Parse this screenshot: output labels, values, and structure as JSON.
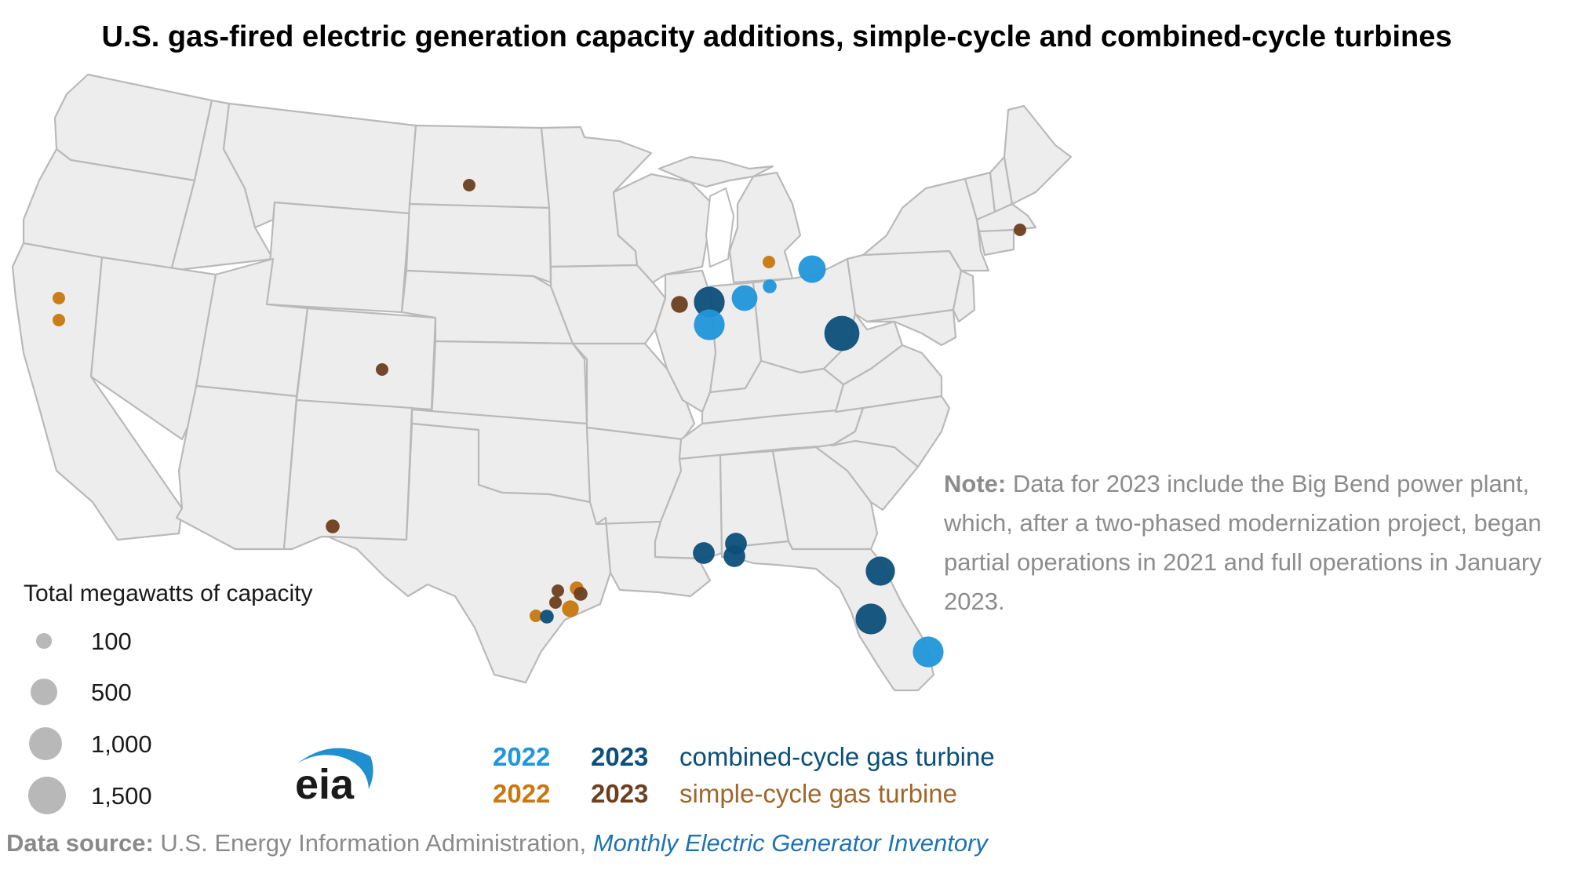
{
  "title": "U.S. gas-fired electric generation capacity additions, simple-cycle and combined-cycle turbines",
  "legend": {
    "title": "Total megawatts of capacity",
    "sizes": [
      "100",
      "500",
      "1,000",
      "1,500"
    ]
  },
  "key": {
    "combined_2022": "2022",
    "combined_2023": "2023",
    "combined_label": "combined-cycle gas turbine",
    "simple_2022": "2022",
    "simple_2023": "2023",
    "simple_label": "simple-cycle gas turbine"
  },
  "note": {
    "label": "Note:",
    "text": "Data for 2023 include the Big Bend power plant, which, after a two-phased modernization project, began partial operations in 2021 and full operations in January 2023."
  },
  "source": {
    "label": "Data source:",
    "org": "U.S. Energy Information Administration,",
    "dataset": "Monthly Electric Generator Inventory"
  },
  "logo": {
    "text": "eia"
  },
  "colors": {
    "combined_2022": "#2196d9",
    "combined_2023": "#0c4f7a",
    "simple_2022": "#c8780e",
    "simple_2023": "#6b3f1f",
    "legend_circle": "#b8b8b8",
    "state_fill": "#ededed",
    "state_border": "#b9b9b9"
  },
  "map_data": {
    "points": [
      {
        "location": "North Dakota",
        "category": "simple-cycle 2023",
        "mw": 120
      },
      {
        "location": "Massachusetts",
        "category": "simple-cycle 2023",
        "mw": 120
      },
      {
        "location": "California (north)",
        "category": "simple-cycle 2022",
        "mw": 80
      },
      {
        "location": "California (central)",
        "category": "simple-cycle 2022",
        "mw": 80
      },
      {
        "location": "Colorado",
        "category": "simple-cycle 2023",
        "mw": 150
      },
      {
        "location": "New Mexico",
        "category": "simple-cycle 2023",
        "mw": 200
      },
      {
        "location": "Michigan (north)",
        "category": "simple-cycle 2022",
        "mw": 60
      },
      {
        "location": "Michigan (east)",
        "category": "combined-cycle 2022",
        "mw": 800
      },
      {
        "location": "Michigan (south)",
        "category": "combined-cycle 2022",
        "mw": 200
      },
      {
        "location": "Indiana (north)",
        "category": "combined-cycle 2022",
        "mw": 700
      },
      {
        "location": "Illinois (north)",
        "category": "combined-cycle 2023",
        "mw": 1000
      },
      {
        "location": "Illinois (north-central)",
        "category": "combined-cycle 2022",
        "mw": 1000
      },
      {
        "location": "Illinois (west)",
        "category": "simple-cycle 2023",
        "mw": 300
      },
      {
        "location": "Ohio",
        "category": "combined-cycle 2023",
        "mw": 1300
      },
      {
        "location": "Louisiana",
        "category": "combined-cycle 2023",
        "mw": 500
      },
      {
        "location": "Mississippi (south)",
        "category": "combined-cycle 2023",
        "mw": 500
      },
      {
        "location": "Mississippi (coast)",
        "category": "combined-cycle 2023",
        "mw": 500
      },
      {
        "location": "Florida (north)",
        "category": "combined-cycle 2023",
        "mw": 900
      },
      {
        "location": "Florida (Big Bend)",
        "category": "combined-cycle 2023",
        "mw": 1000
      },
      {
        "location": "Florida (south-east)",
        "category": "combined-cycle 2022",
        "mw": 1000
      },
      {
        "location": "Texas (Houston north)",
        "category": "simple-cycle 2022",
        "mw": 200
      },
      {
        "location": "Texas (Houston)",
        "category": "simple-cycle 2023",
        "mw": 200
      },
      {
        "location": "Texas (Houston east)",
        "category": "simple-cycle 2023",
        "mw": 120
      },
      {
        "location": "Texas (Houston area)",
        "category": "simple-cycle 2023",
        "mw": 120
      },
      {
        "location": "Texas (Houston south)",
        "category": "simple-cycle 2022",
        "mw": 300
      },
      {
        "location": "Texas (Victoria)",
        "category": "simple-cycle 2022",
        "mw": 150
      },
      {
        "location": "Texas (Bay City)",
        "category": "combined-cycle 2023",
        "mw": 200
      }
    ]
  }
}
